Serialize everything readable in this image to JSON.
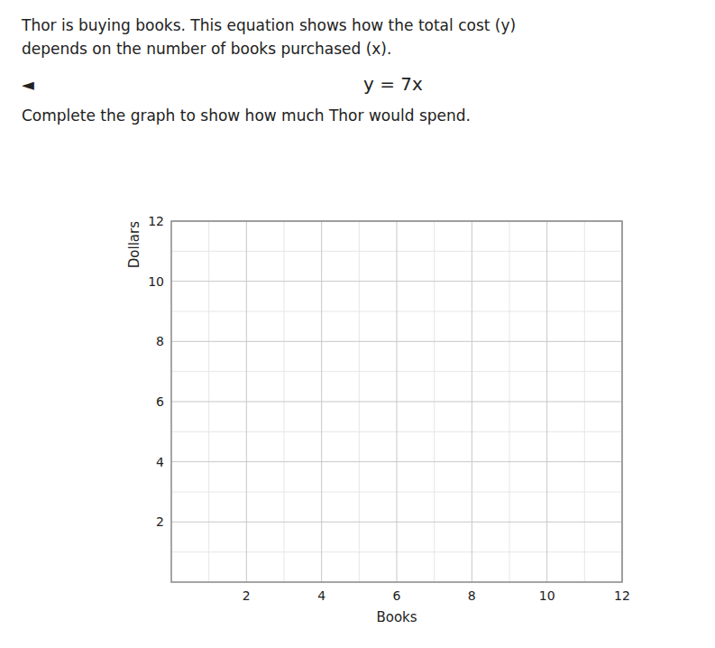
{
  "chart_data": {
    "type": "line",
    "title": [
      "Thor is buying books. This equation shows how the total cost (y)",
      "depends on the number of books purchased (x)."
    ],
    "annotations": [
      "◄",
      "y = 7x",
      "Complete the graph to show how much Thor would spend."
    ],
    "x_label": "Books",
    "y_label": "Dollars",
    "xlim": [
      0,
      12
    ],
    "ylim": [
      0,
      12
    ],
    "xticks": [
      2,
      4,
      6,
      8,
      10,
      12
    ],
    "yticks": [
      2,
      4,
      6,
      8,
      10,
      12
    ],
    "grid": true
  }
}
